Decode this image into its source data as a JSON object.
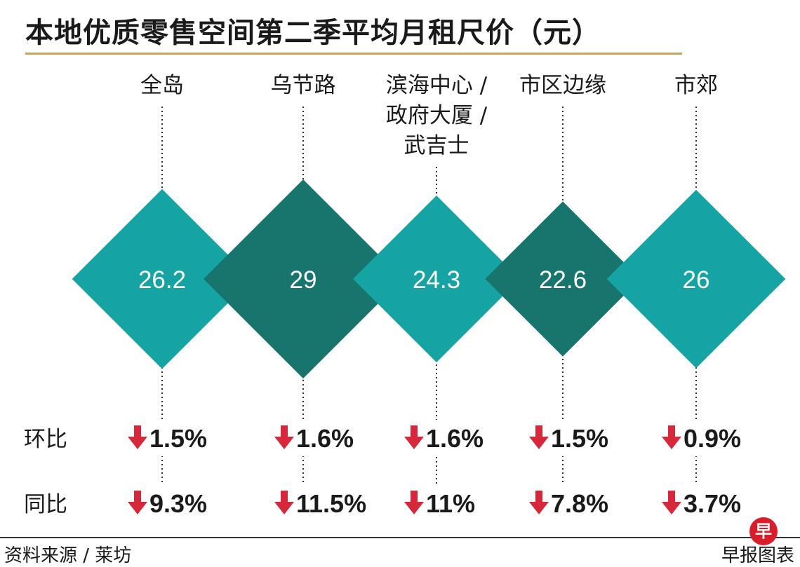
{
  "header": {
    "title": "本地优质零售空间第二季平均月租尺价（元）"
  },
  "colors": {
    "teal_light": "#16a3a3",
    "teal_dark": "#17756d",
    "arrow_red": "#d6283a",
    "title_rule": "#c8a55a"
  },
  "chart_data": {
    "type": "diamond-infographic",
    "title": "本地优质零售空间第二季平均月租尺价（元）",
    "unit": "元",
    "categories": [
      [
        "全岛"
      ],
      [
        "乌节路"
      ],
      [
        "滨海中心 /",
        "政府大厦 /",
        "武吉士"
      ],
      [
        "市区边缘"
      ],
      [
        "市郊"
      ]
    ],
    "values": [
      26.2,
      29,
      24.3,
      22.6,
      26
    ],
    "value_labels": [
      "26.2",
      "29",
      "24.3",
      "22.6",
      "26"
    ],
    "diamond_shade": [
      "light",
      "dark",
      "light",
      "dark",
      "light"
    ],
    "series": [
      {
        "name": "环比",
        "direction": "down",
        "values": [
          -1.5,
          -1.6,
          -1.6,
          -1.5,
          -0.9
        ],
        "labels": [
          "1.5%",
          "1.6%",
          "1.6%",
          "1.5%",
          "0.9%"
        ]
      },
      {
        "name": "同比",
        "direction": "down",
        "values": [
          -9.3,
          -11.5,
          -11,
          -7.8,
          -3.7
        ],
        "labels": [
          "9.3%",
          "11.5%",
          "11%",
          "7.8%",
          "3.7%"
        ]
      }
    ]
  },
  "footer": {
    "source": "资料来源 / 莱坊",
    "brand": "早报图表",
    "logo_char": "早"
  }
}
